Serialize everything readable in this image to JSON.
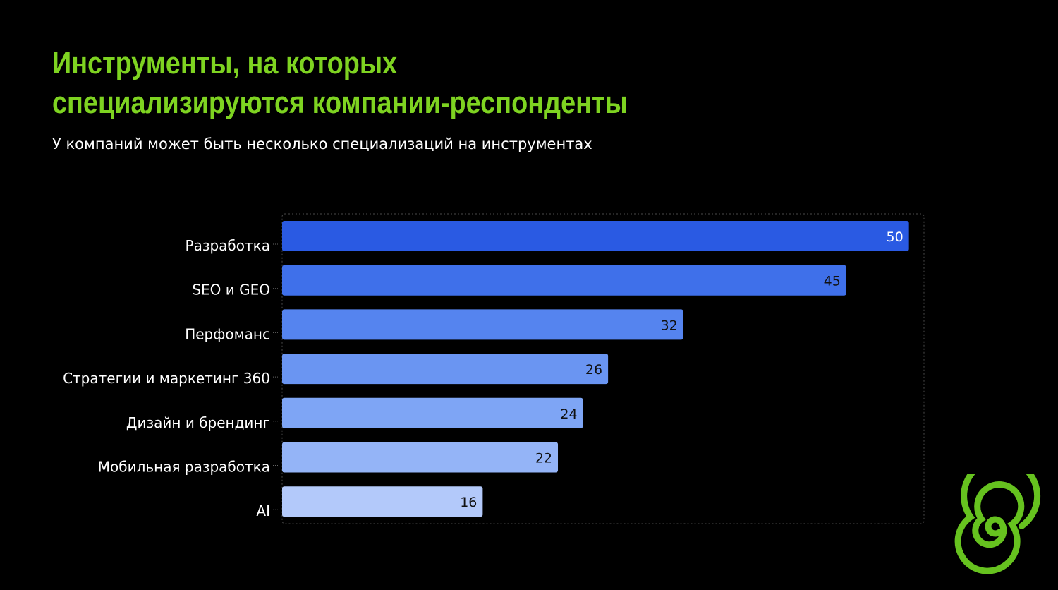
{
  "title": {
    "line1": "Инструменты, на которых",
    "line2": "специализируются компании-респонденты"
  },
  "subtitle": "У компаний может быть несколько специализаций на инструментах",
  "colors": {
    "background": "#000000",
    "title": "#7ed321",
    "logo": "#66c21f",
    "bar_gradient": [
      "#2a5ae3",
      "#3f70ea",
      "#5584ef",
      "#6a95f2",
      "#7ea5f5",
      "#94b4f7",
      "#b3c9fa"
    ]
  },
  "logo": {
    "icon": "spiral-logo-icon"
  },
  "chart_data": {
    "type": "bar",
    "orientation": "horizontal",
    "categories": [
      "Разработка",
      "SEO и GEO",
      "Перфоманс",
      "Стратегии и маркетинг 360",
      "Дизайн и брендинг",
      "Мобильная разработка",
      "AI"
    ],
    "values": [
      50,
      45,
      32,
      26,
      24,
      22,
      16
    ],
    "data_labels": [
      "50",
      "45",
      "32",
      "26",
      "24",
      "22",
      "16"
    ],
    "xlim": [
      0,
      51.2
    ],
    "title": "",
    "xlabel": "",
    "ylabel": "",
    "grid": false,
    "legend": "none"
  }
}
